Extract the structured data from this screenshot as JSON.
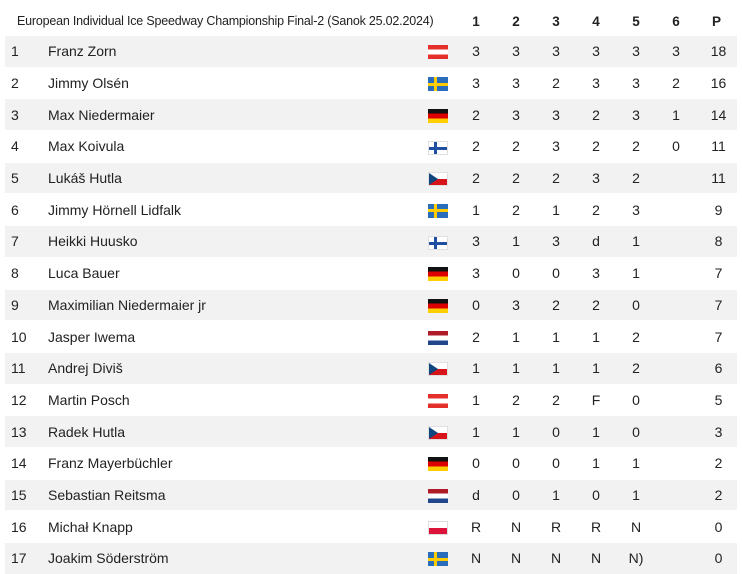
{
  "table": {
    "title": "European Individual Ice Speedway Championship Final-2 (Sanok 25.02.2024)",
    "heat_headers": [
      "1",
      "2",
      "3",
      "4",
      "5",
      "6"
    ],
    "points_header": "P",
    "rows": [
      {
        "pos": "1",
        "name": "Franz Zorn",
        "flag": "austria-flag-icon",
        "flag_color": "#e4302b",
        "heats": [
          "3",
          "3",
          "3",
          "3",
          "3",
          "3"
        ],
        "points": "18"
      },
      {
        "pos": "2",
        "name": "Jimmy Olsén",
        "flag": "sweden-flag-icon",
        "flag_color": "#2a6ebb",
        "heats": [
          "3",
          "3",
          "2",
          "3",
          "3",
          "2"
        ],
        "points": "16"
      },
      {
        "pos": "3",
        "name": "Max Niedermaier",
        "flag": "germany-flag-icon",
        "flag_color": "#dd0000",
        "heats": [
          "2",
          "3",
          "3",
          "2",
          "3",
          "1"
        ],
        "points": "14"
      },
      {
        "pos": "4",
        "name": "Max Koivula",
        "flag": "finland-flag-icon",
        "flag_color": "#1f4fa0",
        "heats": [
          "2",
          "2",
          "3",
          "2",
          "2",
          "0"
        ],
        "points": "11"
      },
      {
        "pos": "5",
        "name": "Lukáš Hutla",
        "flag": "czechia-flag-icon",
        "flag_color": "#11457e",
        "heats": [
          "2",
          "2",
          "2",
          "3",
          "2",
          ""
        ],
        "points": "11"
      },
      {
        "pos": "6",
        "name": "Jimmy Hörnell Lidfalk",
        "flag": "sweden-flag-icon",
        "flag_color": "#2a6ebb",
        "heats": [
          "1",
          "2",
          "1",
          "2",
          "3",
          ""
        ],
        "points": "9"
      },
      {
        "pos": "7",
        "name": "Heikki Huusko",
        "flag": "finland-flag-icon",
        "flag_color": "#1f4fa0",
        "heats": [
          "3",
          "1",
          "3",
          "d",
          "1",
          ""
        ],
        "points": "8"
      },
      {
        "pos": "8",
        "name": "Luca Bauer",
        "flag": "germany-flag-icon",
        "flag_color": "#dd0000",
        "heats": [
          "3",
          "0",
          "0",
          "3",
          "1",
          ""
        ],
        "points": "7"
      },
      {
        "pos": "9",
        "name": "Maximilian Niedermaier jr",
        "flag": "germany-flag-icon",
        "flag_color": "#dd0000",
        "heats": [
          "0",
          "3",
          "2",
          "2",
          "0",
          ""
        ],
        "points": "7"
      },
      {
        "pos": "10",
        "name": "Jasper Iwema",
        "flag": "netherlands-flag-icon",
        "flag_color": "#ae1c28",
        "heats": [
          "2",
          "1",
          "1",
          "1",
          "2",
          ""
        ],
        "points": "7"
      },
      {
        "pos": "11",
        "name": "Andrej Diviš",
        "flag": "czechia-flag-icon",
        "flag_color": "#11457e",
        "heats": [
          "1",
          "1",
          "1",
          "1",
          "2",
          ""
        ],
        "points": "6"
      },
      {
        "pos": "12",
        "name": "Martin Posch",
        "flag": "austria-flag-icon",
        "flag_color": "#e4302b",
        "heats": [
          "1",
          "2",
          "2",
          "F",
          "0",
          ""
        ],
        "points": "5"
      },
      {
        "pos": "13",
        "name": "Radek Hutla",
        "flag": "czechia-flag-icon",
        "flag_color": "#11457e",
        "heats": [
          "1",
          "1",
          "0",
          "1",
          "0",
          ""
        ],
        "points": "3"
      },
      {
        "pos": "14",
        "name": "Franz Mayerbüchler",
        "flag": "germany-flag-icon",
        "flag_color": "#dd0000",
        "heats": [
          "0",
          "0",
          "0",
          "1",
          "1",
          ""
        ],
        "points": "2"
      },
      {
        "pos": "15",
        "name": "Sebastian Reitsma",
        "flag": "netherlands-flag-icon",
        "flag_color": "#ae1c28",
        "heats": [
          "d",
          "0",
          "1",
          "0",
          "1",
          ""
        ],
        "points": "2"
      },
      {
        "pos": "16",
        "name": "Michał Knapp",
        "flag": "poland-flag-icon",
        "flag_color": "#dc143c",
        "heats": [
          "R",
          "N",
          "R",
          "R",
          "N",
          ""
        ],
        "points": "0"
      },
      {
        "pos": "17",
        "name": "Joakim Söderström",
        "flag": "sweden-flag-icon",
        "flag_color": "#2a6ebb",
        "heats": [
          "N",
          "N",
          "N",
          "N",
          "N)",
          ""
        ],
        "points": "0"
      }
    ]
  }
}
